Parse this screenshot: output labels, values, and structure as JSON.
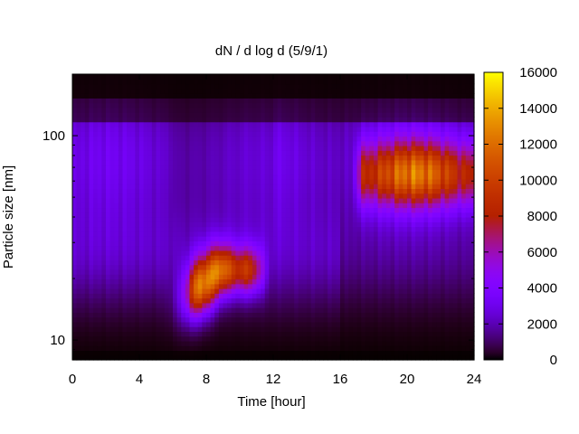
{
  "chart_data": {
    "type": "heatmap",
    "title": "dN / d log d (5/9/1)",
    "xlabel": "Time [hour]",
    "ylabel": "Particle size [nm]",
    "xlim": [
      0,
      24
    ],
    "ylim": [
      8,
      200
    ],
    "y_scale": "log",
    "x_ticks": [
      0,
      4,
      8,
      12,
      16,
      20,
      24
    ],
    "x_tick_labels": [
      "0",
      "4",
      "8",
      "12",
      "16",
      "20",
      "24"
    ],
    "y_ticks": [
      10,
      100
    ],
    "y_tick_labels": [
      "10",
      "100"
    ],
    "colorbar": {
      "range": [
        0,
        16000
      ],
      "ticks": [
        0,
        2000,
        4000,
        6000,
        8000,
        10000,
        12000,
        14000,
        16000
      ],
      "tick_labels": [
        "0",
        "2000",
        "4000",
        "6000",
        "8000",
        "10000",
        "12000",
        "14000",
        "16000"
      ],
      "colormap": "gnuplot-pm3d (black-purple-red-yellow)"
    },
    "features": [
      {
        "name": "background mode",
        "time_range": [
          0,
          24
        ],
        "size_nm": 80,
        "level": 3500
      },
      {
        "name": "nucleation burst",
        "time_range": [
          6.8,
          10
        ],
        "size_nm": 18,
        "peak_level": 13000
      },
      {
        "name": "growth to larger mode",
        "time_range": [
          10,
          12
        ],
        "size_nm": 22,
        "level": 8000
      },
      {
        "name": "evening accumulation mode",
        "time_range": [
          17,
          24
        ],
        "size_nm": 65,
        "peak_level": 10500
      }
    ],
    "grid": false,
    "legend": "colorbar-right"
  }
}
